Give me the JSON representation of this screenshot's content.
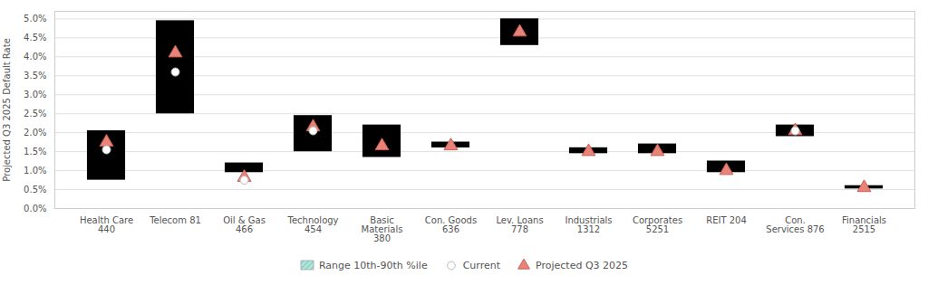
{
  "chart_data": {
    "type": "range",
    "ylabel": "Projected Q3 2025 Default Rate",
    "categories": [
      "Health Care\n440",
      "Telecom 81",
      "Oil & Gas\n466",
      "Technology\n454",
      "Basic\nMaterials\n380",
      "Con. Goods\n636",
      "Lev. Loans\n778",
      "Industrials\n1312",
      "Corporates\n5251",
      "REIT 204",
      "Con.\nServices 876",
      "Financials\n2515"
    ],
    "series": [
      {
        "name": "Range 10th-90th %ile",
        "type": "range",
        "color": "#6ecfc0",
        "low": [
          0.0075,
          0.025,
          0.0095,
          0.015,
          0.0135,
          0.016,
          0.043,
          0.0145,
          0.0145,
          0.0095,
          0.019,
          0.0052
        ],
        "high": [
          0.0205,
          0.0495,
          0.012,
          0.0245,
          0.022,
          0.0175,
          0.05,
          0.016,
          0.017,
          0.0125,
          0.022,
          0.006
        ]
      },
      {
        "name": "Current",
        "type": "scatter",
        "marker": "circle",
        "color": "#ffffff",
        "values": [
          0.0155,
          0.036,
          0.0075,
          0.0205,
          null,
          null,
          null,
          null,
          null,
          null,
          0.0205,
          null
        ]
      },
      {
        "name": "Projected Q3 2025",
        "type": "scatter",
        "marker": "triangle",
        "color": "#e8837a",
        "values": [
          0.0175,
          0.041,
          0.0082,
          0.0215,
          0.0165,
          0.0165,
          0.0465,
          0.015,
          0.015,
          0.01,
          0.0205,
          0.0055
        ]
      }
    ],
    "ylim": [
      0.0,
      0.052
    ],
    "yticks": [
      {
        "value": 0.0,
        "label": "0.0%"
      },
      {
        "value": 0.005,
        "label": "0.5%"
      },
      {
        "value": 0.01,
        "label": "1.0%"
      },
      {
        "value": 0.015,
        "label": "1.5%"
      },
      {
        "value": 0.02,
        "label": "2.0%"
      },
      {
        "value": 0.025,
        "label": "2.5%"
      },
      {
        "value": 0.03,
        "label": "3.0%"
      },
      {
        "value": 0.035,
        "label": "3.5%"
      },
      {
        "value": 0.04,
        "label": "4.0%"
      },
      {
        "value": 0.045,
        "label": "4.5%"
      },
      {
        "value": 0.05,
        "label": "5.0%"
      }
    ],
    "grid": true,
    "legend": "bottom"
  }
}
